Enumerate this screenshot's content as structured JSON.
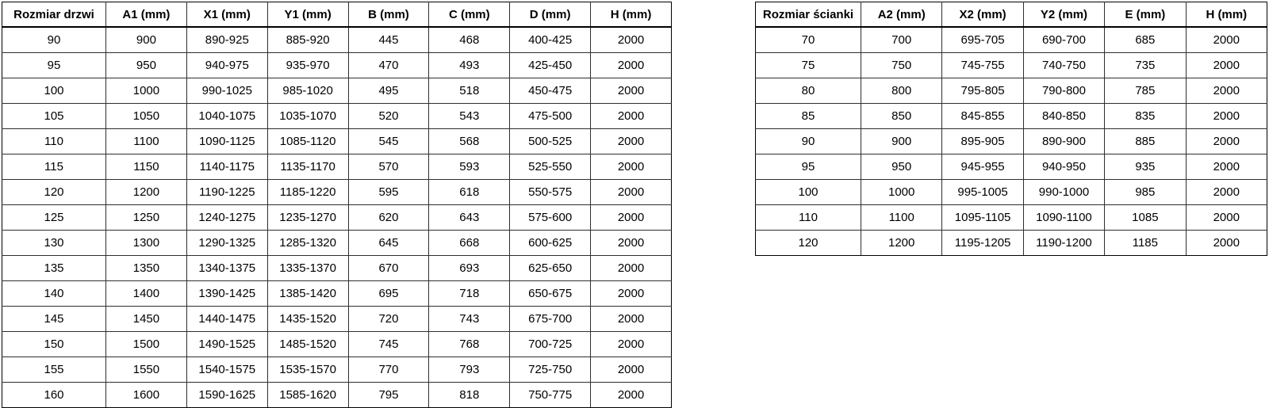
{
  "page": {
    "background_color": "#ffffff",
    "text_color": "#000000",
    "border_color": "#000000"
  },
  "tables": {
    "door": {
      "headers": [
        "Rozmiar drzwi",
        "A1 (mm)",
        "X1 (mm)",
        "Y1 (mm)",
        "B (mm)",
        "C (mm)",
        "D (mm)",
        "H (mm)"
      ],
      "rows": [
        [
          "90",
          "900",
          "890-925",
          "885-920",
          "445",
          "468",
          "400-425",
          "2000"
        ],
        [
          "95",
          "950",
          "940-975",
          "935-970",
          "470",
          "493",
          "425-450",
          "2000"
        ],
        [
          "100",
          "1000",
          "990-1025",
          "985-1020",
          "495",
          "518",
          "450-475",
          "2000"
        ],
        [
          "105",
          "1050",
          "1040-1075",
          "1035-1070",
          "520",
          "543",
          "475-500",
          "2000"
        ],
        [
          "110",
          "1100",
          "1090-1125",
          "1085-1120",
          "545",
          "568",
          "500-525",
          "2000"
        ],
        [
          "115",
          "1150",
          "1140-1175",
          "1135-1170",
          "570",
          "593",
          "525-550",
          "2000"
        ],
        [
          "120",
          "1200",
          "1190-1225",
          "1185-1220",
          "595",
          "618",
          "550-575",
          "2000"
        ],
        [
          "125",
          "1250",
          "1240-1275",
          "1235-1270",
          "620",
          "643",
          "575-600",
          "2000"
        ],
        [
          "130",
          "1300",
          "1290-1325",
          "1285-1320",
          "645",
          "668",
          "600-625",
          "2000"
        ],
        [
          "135",
          "1350",
          "1340-1375",
          "1335-1370",
          "670",
          "693",
          "625-650",
          "2000"
        ],
        [
          "140",
          "1400",
          "1390-1425",
          "1385-1420",
          "695",
          "718",
          "650-675",
          "2000"
        ],
        [
          "145",
          "1450",
          "1440-1475",
          "1435-1520",
          "720",
          "743",
          "675-700",
          "2000"
        ],
        [
          "150",
          "1500",
          "1490-1525",
          "1485-1520",
          "745",
          "768",
          "700-725",
          "2000"
        ],
        [
          "155",
          "1550",
          "1540-1575",
          "1535-1570",
          "770",
          "793",
          "725-750",
          "2000"
        ],
        [
          "160",
          "1600",
          "1590-1625",
          "1585-1620",
          "795",
          "818",
          "750-775",
          "2000"
        ]
      ]
    },
    "wall": {
      "headers": [
        "Rozmiar ścianki",
        "A2 (mm)",
        "X2 (mm)",
        "Y2 (mm)",
        "E (mm)",
        "H (mm)"
      ],
      "rows": [
        [
          "70",
          "700",
          "695-705",
          "690-700",
          "685",
          "2000"
        ],
        [
          "75",
          "750",
          "745-755",
          "740-750",
          "735",
          "2000"
        ],
        [
          "80",
          "800",
          "795-805",
          "790-800",
          "785",
          "2000"
        ],
        [
          "85",
          "850",
          "845-855",
          "840-850",
          "835",
          "2000"
        ],
        [
          "90",
          "900",
          "895-905",
          "890-900",
          "885",
          "2000"
        ],
        [
          "95",
          "950",
          "945-955",
          "940-950",
          "935",
          "2000"
        ],
        [
          "100",
          "1000",
          "995-1005",
          "990-1000",
          "985",
          "2000"
        ],
        [
          "110",
          "1100",
          "1095-1105",
          "1090-1100",
          "1085",
          "2000"
        ],
        [
          "120",
          "1200",
          "1195-1205",
          "1190-1200",
          "1185",
          "2000"
        ]
      ]
    }
  }
}
